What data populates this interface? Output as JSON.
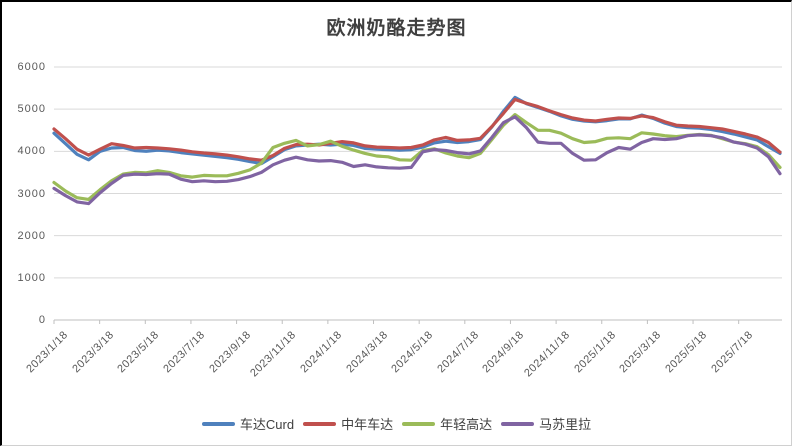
{
  "chart": {
    "title": "欧洲奶酪走势图"
  },
  "chart_data": {
    "type": "line",
    "title": "欧洲奶酪走势图",
    "xlabel": "",
    "ylabel": "",
    "ylim": [
      0,
      6000
    ],
    "y_ticks": [
      0,
      1000,
      2000,
      3000,
      4000,
      5000,
      6000
    ],
    "grid": "horizontal",
    "legend_position": "bottom",
    "x_tick_labels": [
      "2023/1/18",
      "2023/3/18",
      "2023/5/18",
      "2023/7/18",
      "2023/9/18",
      "2023/11/18",
      "2024/1/18",
      "2024/3/18",
      "2024/5/18",
      "2024/7/18",
      "2024/9/18",
      "2024/11/18",
      "2025/1/18",
      "2025/3/18",
      "2025/5/18",
      "2025/7/18"
    ],
    "x_tick_step_frac": 0.0627,
    "series": [
      {
        "name": "车达Curd",
        "color": "#4F81BD",
        "values": [
          4430,
          4180,
          3930,
          3800,
          4000,
          4080,
          4090,
          4020,
          4000,
          4030,
          4010,
          3970,
          3940,
          3910,
          3880,
          3850,
          3810,
          3760,
          3710,
          3870,
          4040,
          4130,
          4150,
          4170,
          4150,
          4170,
          4140,
          4070,
          4050,
          4040,
          4030,
          4040,
          4100,
          4200,
          4240,
          4210,
          4230,
          4280,
          4580,
          4950,
          5280,
          5130,
          5040,
          4950,
          4840,
          4760,
          4720,
          4700,
          4730,
          4770,
          4770,
          4860,
          4780,
          4670,
          4590,
          4560,
          4550,
          4520,
          4470,
          4410,
          4340,
          4270,
          4110,
          3950
        ]
      },
      {
        "name": "中年车达",
        "color": "#C0504D",
        "values": [
          4530,
          4300,
          4050,
          3910,
          4050,
          4180,
          4140,
          4080,
          4090,
          4080,
          4060,
          4030,
          3990,
          3960,
          3940,
          3910,
          3870,
          3820,
          3790,
          3900,
          4070,
          4160,
          4170,
          4150,
          4190,
          4230,
          4200,
          4130,
          4100,
          4090,
          4080,
          4090,
          4150,
          4270,
          4330,
          4260,
          4270,
          4310,
          4590,
          4900,
          5230,
          5140,
          5060,
          4960,
          4870,
          4790,
          4740,
          4720,
          4760,
          4790,
          4780,
          4840,
          4800,
          4700,
          4620,
          4600,
          4590,
          4560,
          4530,
          4470,
          4410,
          4340,
          4210,
          3980
        ]
      },
      {
        "name": "年轻高达",
        "color": "#9BBB59",
        "values": [
          3260,
          3060,
          2900,
          2860,
          3090,
          3300,
          3460,
          3500,
          3490,
          3540,
          3500,
          3420,
          3390,
          3430,
          3420,
          3420,
          3480,
          3560,
          3720,
          4090,
          4190,
          4260,
          4130,
          4160,
          4240,
          4120,
          4030,
          3950,
          3890,
          3870,
          3800,
          3790,
          4020,
          4060,
          3960,
          3890,
          3850,
          3950,
          4280,
          4620,
          4870,
          4680,
          4500,
          4500,
          4430,
          4300,
          4210,
          4230,
          4310,
          4320,
          4300,
          4440,
          4410,
          4370,
          4350,
          4380,
          4400,
          4380,
          4300,
          4220,
          4180,
          4110,
          3920,
          3620
        ]
      },
      {
        "name": "马苏里拉",
        "color": "#8064A2",
        "values": [
          3120,
          2950,
          2800,
          2760,
          3020,
          3240,
          3430,
          3460,
          3450,
          3470,
          3460,
          3340,
          3280,
          3300,
          3280,
          3290,
          3330,
          3400,
          3500,
          3680,
          3790,
          3860,
          3800,
          3770,
          3780,
          3740,
          3640,
          3680,
          3630,
          3610,
          3600,
          3620,
          3990,
          4040,
          4020,
          3970,
          3940,
          4010,
          4330,
          4680,
          4820,
          4560,
          4220,
          4190,
          4190,
          3950,
          3790,
          3800,
          3970,
          4090,
          4050,
          4210,
          4300,
          4280,
          4300,
          4370,
          4390,
          4370,
          4320,
          4220,
          4170,
          4080,
          3870,
          3470
        ]
      }
    ]
  },
  "style": {
    "gridline_color": "#d9d9d9",
    "axis_color": "#bfbfbf",
    "tick_label_color": "#595959",
    "title_color": "#404040"
  }
}
